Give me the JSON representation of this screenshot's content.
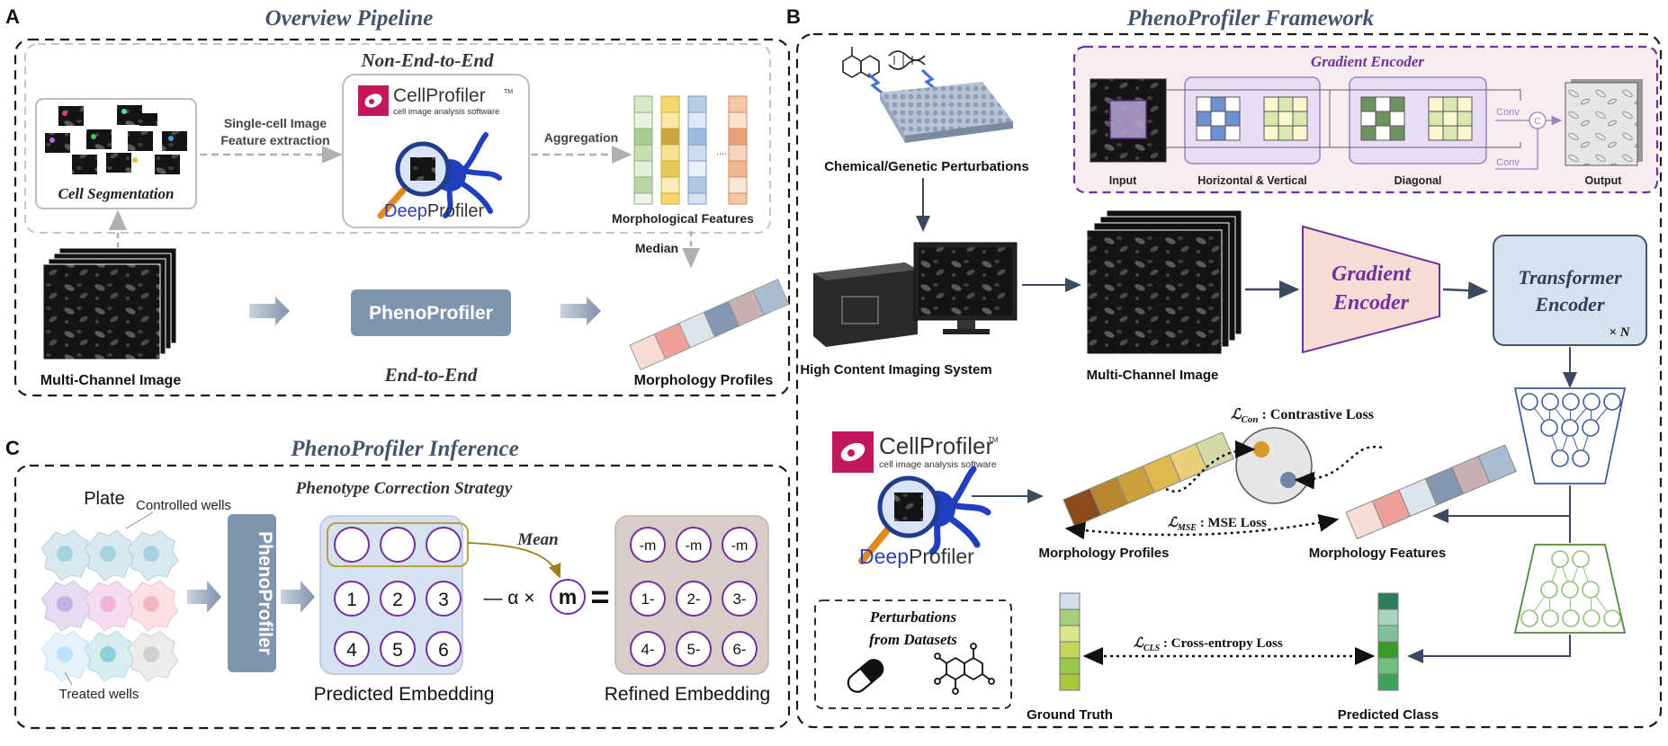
{
  "panels": {
    "A": {
      "letter": "A",
      "title": "Overview Pipeline",
      "subtitle": "Non-End-to-End",
      "cell_seg": "Cell Segmentation",
      "feat_extract": [
        "Single-cell Image",
        "Feature extraction"
      ],
      "cellprofiler": "CellProfiler",
      "cp_tm": "TM",
      "cp_sub": "cell image analysis software",
      "deep": "Deep",
      "profiler": "Profiler",
      "aggregation": "Aggregation",
      "dots": "......",
      "morph_features": "Morphological Features",
      "median": "Median",
      "multi_channel": "Multi-Channel Image",
      "phenoprofiler": "PhenoProfiler",
      "end_to_end": "End-to-End",
      "morph_profiles": "Morphology Profiles"
    },
    "B": {
      "letter": "B",
      "title": "PhenoProfiler Framework",
      "gradient_encoder_title": "Gradient Encoder",
      "input": "Input",
      "hv": "Horizontal & Vertical",
      "diag": "Diagonal",
      "output": "Output",
      "conv": "Conv",
      "concat": "C",
      "chem": "Chemical/Genetic Perturbations",
      "hcis": "High Content Imaging System",
      "multi_channel": "Multi-Channel Image",
      "ge_block": [
        "Gradient",
        "Encoder"
      ],
      "te_block": [
        "Transformer",
        "Encoder"
      ],
      "times_n": "× N",
      "loss_con": "ℒ",
      "loss_con_sub": "Con",
      "loss_con_text": " : Contrastive Loss",
      "loss_mse": "ℒ",
      "loss_mse_sub": "MSE",
      "loss_mse_text": " : MSE Loss",
      "loss_cls": "ℒ",
      "loss_cls_sub": "CLS",
      "loss_cls_text": " : Cross-entropy Loss",
      "cellprofiler": "CellProfiler",
      "cp_tm": "TM",
      "cp_sub": "cell image analysis software",
      "deep": "Deep",
      "profiler": "Profiler",
      "morph_profiles": "Morphology Profiles",
      "morph_features": "Morphology Features",
      "perturb": [
        "Perturbations",
        "from Datasets"
      ],
      "ground_truth": "Ground Truth",
      "predicted_class": "Predicted Class"
    },
    "C": {
      "letter": "C",
      "title": "PhenoProfiler Inference",
      "subtitle": "Phenotype Correction Strategy",
      "plate": "Plate",
      "controlled": "Controlled wells",
      "treated": "Treated wells",
      "phenoprofiler": "PhenoProfiler",
      "mean": "Mean",
      "minus_alpha": "— α ×",
      "m": "m",
      "equals": "=",
      "pred_nums": [
        "1",
        "2",
        "3",
        "4",
        "5",
        "6"
      ],
      "pred_emb": "Predicted Embedding",
      "refined_top": [
        "-m",
        "-m",
        "-m"
      ],
      "refined_nums": [
        "1-",
        "2-",
        "3-",
        "4-",
        "5-",
        "6-"
      ],
      "refined_emb": "Refined Embedding"
    }
  },
  "colors": {
    "title": "#44546a",
    "purple": "#7030a0",
    "slate": "#8497b0",
    "dash": "#1a1a1a"
  }
}
